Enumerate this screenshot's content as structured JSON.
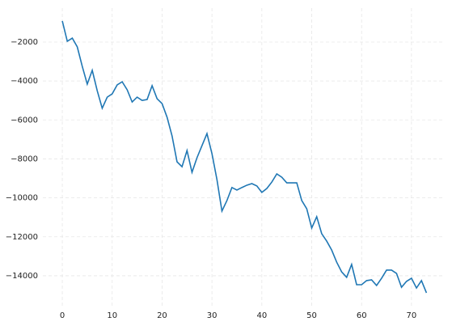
{
  "chart_data": {
    "type": "line",
    "x": [
      0,
      1,
      2,
      3,
      4,
      5,
      6,
      7,
      8,
      9,
      10,
      11,
      12,
      13,
      14,
      15,
      16,
      17,
      18,
      19,
      20,
      21,
      22,
      23,
      24,
      25,
      26,
      27,
      28,
      29,
      30,
      31,
      32,
      33,
      34,
      35,
      36,
      37,
      38,
      39,
      40,
      41,
      42,
      43,
      44,
      45,
      46,
      47,
      48,
      49,
      50,
      51,
      52,
      53,
      54,
      55,
      56,
      57,
      58,
      59,
      60,
      61,
      62,
      63,
      64,
      65,
      66,
      67,
      68,
      69,
      70,
      71,
      72,
      73
    ],
    "series": [
      {
        "color": "#1f77b4",
        "values": [
          -920,
          -1960,
          -1800,
          -2250,
          -3250,
          -4160,
          -3450,
          -4500,
          -5400,
          -4830,
          -4660,
          -4200,
          -4040,
          -4450,
          -5080,
          -4830,
          -5000,
          -4950,
          -4240,
          -4910,
          -5160,
          -5860,
          -6820,
          -8150,
          -8400,
          -7570,
          -8690,
          -7940,
          -7320,
          -6700,
          -7730,
          -9060,
          -10680,
          -10140,
          -9470,
          -9600,
          -9470,
          -9350,
          -9270,
          -9390,
          -9720,
          -9520,
          -9190,
          -8770,
          -8940,
          -9230,
          -9230,
          -9230,
          -10140,
          -10560,
          -11550,
          -10970,
          -11840,
          -12220,
          -12680,
          -13300,
          -13800,
          -14080,
          -13420,
          -14460,
          -14460,
          -14250,
          -14210,
          -14500,
          -14130,
          -13710,
          -13710,
          -13880,
          -14590,
          -14290,
          -14130,
          -14630,
          -14250,
          -14880
        ]
      }
    ],
    "xlim": [
      -3.9,
      76.5
    ],
    "ylim": [
      -15623,
      -257
    ],
    "xticks": [
      0,
      10,
      20,
      30,
      40,
      50,
      60,
      70
    ],
    "yticks": [
      {
        "value": -14000,
        "label": "−14000"
      },
      {
        "value": -12000,
        "label": "−12000"
      },
      {
        "value": -10000,
        "label": "−10000"
      },
      {
        "value": -8000,
        "label": "−8000"
      },
      {
        "value": -6000,
        "label": "−6000"
      },
      {
        "value": -4000,
        "label": "−4000"
      },
      {
        "value": -2000,
        "label": "−2000"
      }
    ],
    "grid": true
  }
}
